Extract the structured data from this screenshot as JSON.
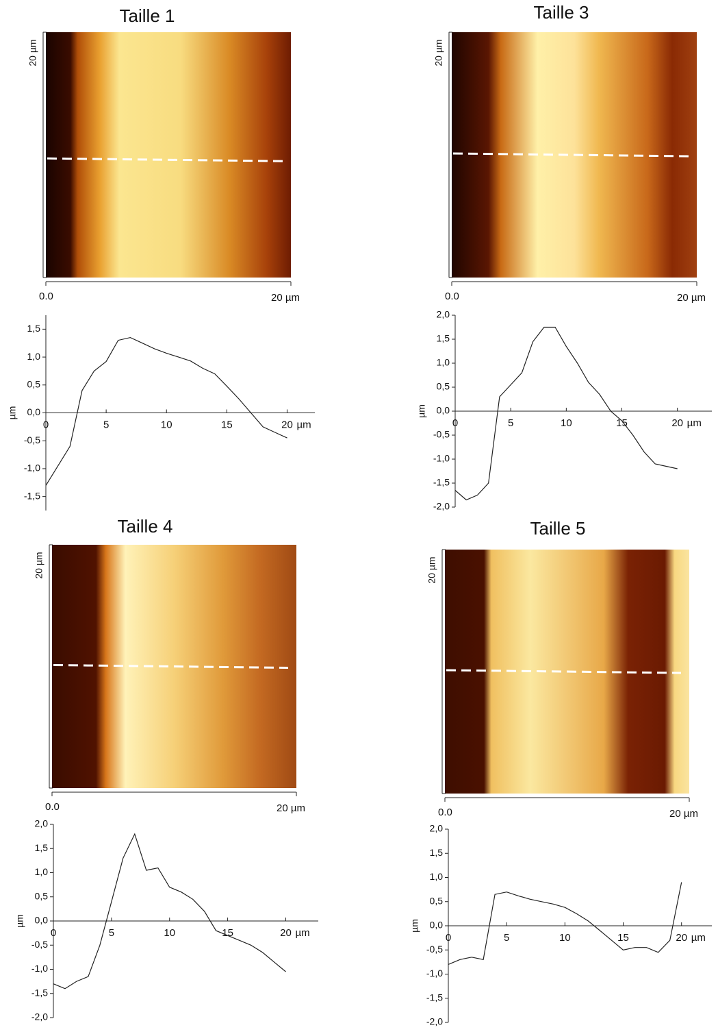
{
  "chart_data": [
    {
      "type": "line",
      "title": "Taille 1",
      "image_axes": {
        "y_label": "20 µm",
        "origin": "0.0",
        "x_label": "20 µm"
      },
      "y_label": "µm",
      "x_unit": "µm",
      "x": [
        0,
        1,
        2,
        3,
        4,
        5,
        6,
        7,
        8,
        9,
        10,
        11,
        12,
        13,
        14,
        15,
        16,
        17,
        18,
        19,
        20
      ],
      "values": [
        -1.3,
        -0.95,
        -0.6,
        0.4,
        0.75,
        0.92,
        1.3,
        1.35,
        1.25,
        1.15,
        1.07,
        1.0,
        0.93,
        0.8,
        0.7,
        0.48,
        0.25,
        0.0,
        -0.25,
        -0.35,
        -0.45
      ],
      "color": "#222",
      "xlim": [
        0,
        22.3
      ],
      "xticks": [
        0,
        5,
        10,
        15,
        20
      ],
      "ylim": [
        -1.75,
        1.75
      ],
      "yticks": [
        {
          "value": -1.5,
          "label": "-1,5"
        },
        {
          "value": -1,
          "label": "-1,0"
        },
        {
          "value": -0.5,
          "label": "-0,5"
        },
        {
          "value": 0,
          "label": "0,0"
        },
        {
          "value": 0.5,
          "label": "0,5"
        },
        {
          "value": 1,
          "label": "1,0"
        },
        {
          "value": 1.5,
          "label": "1,5"
        }
      ]
    },
    {
      "type": "line",
      "title": "Taille 3",
      "image_axes": {
        "y_label": "20 µm",
        "origin": "0.0",
        "x_label": "20 µm"
      },
      "y_label": "µm",
      "x_unit": "µm",
      "x": [
        0,
        1,
        2,
        3,
        4,
        5,
        6,
        7,
        8,
        9,
        10,
        11,
        12,
        13,
        14,
        15,
        16,
        17,
        18,
        19,
        20
      ],
      "values": [
        -1.65,
        -1.85,
        -1.75,
        -1.5,
        0.3,
        0.55,
        0.8,
        1.45,
        1.75,
        1.75,
        1.35,
        1.0,
        0.6,
        0.35,
        0.0,
        -0.2,
        -0.5,
        -0.85,
        -1.1,
        -1.15,
        -1.2
      ],
      "color": "#222",
      "xlim": [
        0,
        23.1
      ],
      "xticks": [
        0,
        5,
        10,
        15,
        20
      ],
      "ylim": [
        -2,
        2
      ],
      "yticks": [
        {
          "value": -2,
          "label": "-2,0"
        },
        {
          "value": -1.5,
          "label": "-1,5"
        },
        {
          "value": -1,
          "label": "-1,0"
        },
        {
          "value": -0.5,
          "label": "-0,5"
        },
        {
          "value": 0,
          "label": "0,0"
        },
        {
          "value": 0.5,
          "label": "0,5"
        },
        {
          "value": 1,
          "label": "1,0"
        },
        {
          "value": 1.5,
          "label": "1,5"
        },
        {
          "value": 2,
          "label": "2,0"
        }
      ]
    },
    {
      "type": "line",
      "title": "Taille 4",
      "image_axes": {
        "y_label": "20 µm",
        "origin": "0.0",
        "x_label": "20 µm"
      },
      "y_label": "µm",
      "x_unit": "µm",
      "x": [
        0,
        1,
        2,
        3,
        4,
        5,
        6,
        7,
        8,
        9,
        10,
        11,
        12,
        13,
        14,
        15,
        16,
        17,
        18,
        19,
        20
      ],
      "values": [
        -1.3,
        -1.4,
        -1.25,
        -1.15,
        -0.5,
        0.4,
        1.3,
        1.8,
        1.05,
        1.1,
        0.7,
        0.6,
        0.45,
        0.2,
        -0.2,
        -0.3,
        -0.4,
        -0.5,
        -0.65,
        -0.85,
        -1.05
      ],
      "color": "#222",
      "xlim": [
        0,
        22.8
      ],
      "xticks": [
        0,
        5,
        10,
        15,
        20
      ],
      "ylim": [
        -2,
        2
      ],
      "yticks": [
        {
          "value": -2,
          "label": "-2,0"
        },
        {
          "value": -1.5,
          "label": "-1,5"
        },
        {
          "value": -1,
          "label": "-1,0"
        },
        {
          "value": -0.5,
          "label": "-0,5"
        },
        {
          "value": 0,
          "label": "0,0"
        },
        {
          "value": 0.5,
          "label": "0,5"
        },
        {
          "value": 1,
          "label": "1,0"
        },
        {
          "value": 1.5,
          "label": "1,5"
        },
        {
          "value": 2,
          "label": "2,0"
        }
      ]
    },
    {
      "type": "line",
      "title": "Taille 5",
      "image_axes": {
        "y_label": "20 µm",
        "origin": "0.0",
        "x_label": "20 µm"
      },
      "y_label": "µm",
      "x_unit": "µm",
      "x": [
        0,
        1,
        2,
        3,
        4,
        5,
        6,
        7,
        8,
        9,
        10,
        11,
        12,
        13,
        14,
        15,
        16,
        17,
        18,
        19,
        20
      ],
      "values": [
        -0.8,
        -0.7,
        -0.65,
        -0.7,
        0.65,
        0.7,
        0.62,
        0.55,
        0.5,
        0.45,
        0.38,
        0.25,
        0.1,
        -0.1,
        -0.3,
        -0.5,
        -0.45,
        -0.45,
        -0.55,
        -0.3,
        0.9
      ],
      "color": "#222",
      "xlim": [
        0,
        22.6
      ],
      "xticks": [
        0,
        5,
        10,
        15,
        20
      ],
      "ylim": [
        -2,
        2
      ],
      "yticks": [
        {
          "value": -2,
          "label": "-2,0"
        },
        {
          "value": -1.5,
          "label": "-1,5"
        },
        {
          "value": -1,
          "label": "-1,0"
        },
        {
          "value": -0.5,
          "label": "-0,5"
        },
        {
          "value": 0,
          "label": "0,0"
        },
        {
          "value": 0.5,
          "label": "0,5"
        },
        {
          "value": 1,
          "label": "1,0"
        },
        {
          "value": 1.5,
          "label": "1,5"
        },
        {
          "value": 2,
          "label": "2,0"
        }
      ]
    }
  ]
}
